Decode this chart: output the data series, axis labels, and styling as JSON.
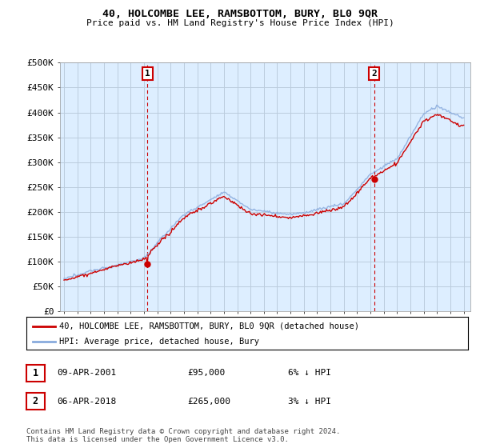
{
  "title": "40, HOLCOMBE LEE, RAMSBOTTOM, BURY, BL0 9QR",
  "subtitle": "Price paid vs. HM Land Registry's House Price Index (HPI)",
  "ylabel_ticks": [
    "£0",
    "£50K",
    "£100K",
    "£150K",
    "£200K",
    "£250K",
    "£300K",
    "£350K",
    "£400K",
    "£450K",
    "£500K"
  ],
  "ytick_values": [
    0,
    50000,
    100000,
    150000,
    200000,
    250000,
    300000,
    350000,
    400000,
    450000,
    500000
  ],
  "ylim": [
    0,
    500000
  ],
  "xlim_start": 1994.7,
  "xlim_end": 2025.5,
  "sale1_x": 2001.27,
  "sale1_y": 95000,
  "sale1_label": "1",
  "sale2_x": 2018.27,
  "sale2_y": 265000,
  "sale2_label": "2",
  "line_color_red": "#cc0000",
  "line_color_blue": "#88aadd",
  "dashed_color": "#cc0000",
  "plot_bg_color": "#ddeeff",
  "background_color": "#ffffff",
  "grid_color": "#bbccdd",
  "legend_entry1": "40, HOLCOMBE LEE, RAMSBOTTOM, BURY, BL0 9QR (detached house)",
  "legend_entry2": "HPI: Average price, detached house, Bury",
  "table_row1": [
    "1",
    "09-APR-2001",
    "£95,000",
    "6% ↓ HPI"
  ],
  "table_row2": [
    "2",
    "06-APR-2018",
    "£265,000",
    "3% ↓ HPI"
  ],
  "footnote": "Contains HM Land Registry data © Crown copyright and database right 2024.\nThis data is licensed under the Open Government Licence v3.0.",
  "xtick_years": [
    1995,
    1996,
    1997,
    1998,
    1999,
    2000,
    2001,
    2002,
    2003,
    2004,
    2005,
    2006,
    2007,
    2008,
    2009,
    2010,
    2011,
    2012,
    2013,
    2014,
    2015,
    2016,
    2017,
    2018,
    2019,
    2020,
    2021,
    2022,
    2023,
    2024,
    2025
  ]
}
